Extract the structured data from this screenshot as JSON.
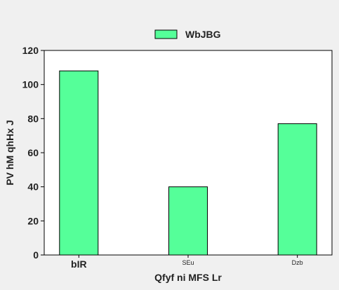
{
  "chart_data": {
    "type": "bar",
    "categories": [
      "bIR",
      "SEu",
      "Dzb"
    ],
    "category_label_sizes": [
      "large",
      "small",
      "small"
    ],
    "series": [
      {
        "name": "WbJBG",
        "values": [
          108,
          40,
          77
        ],
        "color": "#55ff99"
      }
    ],
    "title": "",
    "xlabel": "Qfyf ni MFS Lr",
    "ylabel": "PV hM qhHx J",
    "ylim": [
      0,
      120
    ],
    "yticks": [
      0,
      20,
      40,
      60,
      80,
      100,
      120
    ],
    "grid": false,
    "legend_position": "top-center",
    "colors": {
      "background": "#f0f0f0",
      "plot_background": "#ffffff",
      "bar_edge": "#000000",
      "text": "#222222"
    }
  }
}
